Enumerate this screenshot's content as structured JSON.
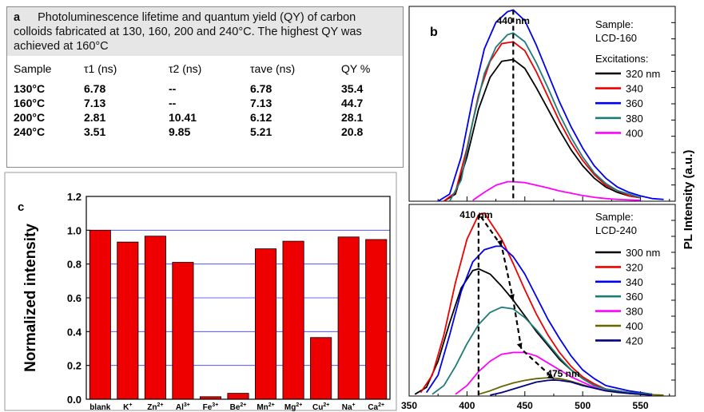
{
  "panel_a": {
    "letter": "a",
    "caption": "Photoluminescence lifetime and quantum yield (QY) of carbon colloids fabricated at 130, 160, 200 and 240°C. The highest QY was achieved at 160°C",
    "headers": [
      "Sample",
      "τ1 (ns)",
      "τ2 (ns)",
      "τave (ns)",
      "QY %"
    ],
    "rows": [
      [
        "130°C",
        "6.78",
        "--",
        "6.78",
        "35.4"
      ],
      [
        "160°C",
        "7.13",
        "--",
        "7.13",
        "44.7"
      ],
      [
        "200°C",
        "2.81",
        "10.41",
        "6.12",
        "28.1"
      ],
      [
        "240°C",
        "3.51",
        "9.85",
        "5.21",
        "20.8"
      ]
    ]
  },
  "chart_data": [
    {
      "panel": "c",
      "type": "bar",
      "ylabel": "Normalized intensity",
      "ylim": [
        0.0,
        1.2
      ],
      "yticks": [
        "0.0",
        "0.2",
        "0.4",
        "0.6",
        "0.8",
        "1.0",
        "1.2"
      ],
      "grid": true,
      "categories": [
        "blank",
        "K+",
        "Zn2+",
        "Al3+",
        "Fe3+",
        "Be2+",
        "Mn2+",
        "Mg2+",
        "Cu2+",
        "Na+",
        "Ca2+"
      ],
      "category_labels": [
        {
          "base": "blank",
          "sup": ""
        },
        {
          "base": "K",
          "sup": "+"
        },
        {
          "base": "Zn",
          "sup": "2+"
        },
        {
          "base": "Al",
          "sup": "3+"
        },
        {
          "base": "Fe",
          "sup": "3+"
        },
        {
          "base": "Be",
          "sup": "2+"
        },
        {
          "base": "Mn",
          "sup": "2+"
        },
        {
          "base": "Mg",
          "sup": "2+"
        },
        {
          "base": "Cu",
          "sup": "2+"
        },
        {
          "base": "Na",
          "sup": "+"
        },
        {
          "base": "Ca",
          "sup": "2+"
        }
      ],
      "values": [
        1.0,
        0.93,
        0.965,
        0.81,
        0.015,
        0.035,
        0.89,
        0.935,
        0.365,
        0.96,
        0.945
      ],
      "bar_color": "#ee0000"
    },
    {
      "panel": "b-top",
      "type": "line",
      "ylabel": "PL Intensity (a.u.)",
      "sample_label": "Sample:",
      "sample_name": "LCD-160",
      "excitations_label": "Excitations:",
      "xlim": [
        350,
        580
      ],
      "ylim": [
        0,
        1.1
      ],
      "peak_annotation": "440 nm",
      "peak_x": 440,
      "series": [
        {
          "name": "320 nm",
          "color": "#000000",
          "points": [
            [
              380,
              0
            ],
            [
              390,
              0.04
            ],
            [
              400,
              0.25
            ],
            [
              410,
              0.52
            ],
            [
              420,
              0.7
            ],
            [
              430,
              0.79
            ],
            [
              440,
              0.8
            ],
            [
              450,
              0.75
            ],
            [
              460,
              0.64
            ],
            [
              470,
              0.52
            ],
            [
              480,
              0.4
            ],
            [
              490,
              0.29
            ],
            [
              500,
              0.2
            ],
            [
              510,
              0.13
            ],
            [
              520,
              0.08
            ],
            [
              530,
              0.05
            ],
            [
              540,
              0.03
            ],
            [
              550,
              0.02
            ]
          ]
        },
        {
          "name": "340",
          "color": "#ee0000",
          "points": [
            [
              380,
              0
            ],
            [
              390,
              0.05
            ],
            [
              400,
              0.3
            ],
            [
              410,
              0.6
            ],
            [
              420,
              0.79
            ],
            [
              430,
              0.89
            ],
            [
              440,
              0.9
            ],
            [
              450,
              0.85
            ],
            [
              460,
              0.73
            ],
            [
              470,
              0.59
            ],
            [
              480,
              0.45
            ],
            [
              490,
              0.33
            ],
            [
              500,
              0.23
            ],
            [
              510,
              0.15
            ],
            [
              520,
              0.09
            ],
            [
              530,
              0.06
            ],
            [
              540,
              0.03
            ],
            [
              550,
              0.02
            ]
          ]
        },
        {
          "name": "360",
          "color": "#0000ee",
          "points": [
            [
              375,
              0
            ],
            [
              385,
              0.04
            ],
            [
              395,
              0.25
            ],
            [
              405,
              0.58
            ],
            [
              415,
              0.86
            ],
            [
              425,
              1.01
            ],
            [
              435,
              1.07
            ],
            [
              440,
              1.08
            ],
            [
              450,
              1.02
            ],
            [
              460,
              0.88
            ],
            [
              470,
              0.72
            ],
            [
              480,
              0.56
            ],
            [
              490,
              0.42
            ],
            [
              500,
              0.3
            ],
            [
              510,
              0.2
            ],
            [
              520,
              0.13
            ],
            [
              530,
              0.08
            ],
            [
              540,
              0.05
            ],
            [
              550,
              0.03
            ],
            [
              560,
              0.015
            ],
            [
              570,
              0.01
            ]
          ]
        },
        {
          "name": "380",
          "color": "#1f7a7a",
          "points": [
            [
              385,
              0
            ],
            [
              395,
              0.12
            ],
            [
              405,
              0.45
            ],
            [
              415,
              0.72
            ],
            [
              425,
              0.87
            ],
            [
              435,
              0.94
            ],
            [
              440,
              0.95
            ],
            [
              450,
              0.9
            ],
            [
              460,
              0.78
            ],
            [
              470,
              0.64
            ],
            [
              480,
              0.49
            ],
            [
              490,
              0.36
            ],
            [
              500,
              0.25
            ],
            [
              510,
              0.16
            ],
            [
              520,
              0.1
            ],
            [
              530,
              0.06
            ],
            [
              540,
              0.04
            ],
            [
              550,
              0.02
            ]
          ]
        },
        {
          "name": "400",
          "color": "#ff00ff",
          "points": [
            [
              405,
              0.005
            ],
            [
              415,
              0.05
            ],
            [
              425,
              0.09
            ],
            [
              435,
              0.11
            ],
            [
              440,
              0.11
            ],
            [
              450,
              0.105
            ],
            [
              460,
              0.09
            ],
            [
              470,
              0.075
            ],
            [
              480,
              0.058
            ],
            [
              490,
              0.045
            ],
            [
              500,
              0.032
            ],
            [
              510,
              0.022
            ],
            [
              520,
              0.015
            ],
            [
              530,
              0.01
            ],
            [
              550,
              0.005
            ]
          ]
        }
      ]
    },
    {
      "panel": "b-bottom",
      "type": "line",
      "sample_label": "Sample:",
      "sample_name": "LCD-240",
      "xlim": [
        350,
        580
      ],
      "xticks": [
        "350",
        "400",
        "450",
        "500",
        "550"
      ],
      "ylim": [
        0,
        1.1
      ],
      "peak_annotations": [
        {
          "text": "410 nm",
          "x": 410
        },
        {
          "text": "475 nm",
          "x": 475
        }
      ],
      "series": [
        {
          "name": "300 nm",
          "color": "#000000",
          "points": [
            [
              355,
              0.01
            ],
            [
              365,
              0.05
            ],
            [
              375,
              0.2
            ],
            [
              385,
              0.42
            ],
            [
              395,
              0.62
            ],
            [
              405,
              0.72
            ],
            [
              410,
              0.73
            ],
            [
              420,
              0.7
            ],
            [
              430,
              0.63
            ],
            [
              440,
              0.55
            ],
            [
              450,
              0.46
            ],
            [
              460,
              0.37
            ],
            [
              470,
              0.29
            ],
            [
              480,
              0.21
            ],
            [
              490,
              0.15
            ],
            [
              500,
              0.1
            ],
            [
              510,
              0.06
            ],
            [
              520,
              0.04
            ],
            [
              540,
              0.02
            ],
            [
              560,
              0.01
            ]
          ]
        },
        {
          "name": "320",
          "color": "#ee0000",
          "points": [
            [
              360,
              0.02
            ],
            [
              370,
              0.12
            ],
            [
              380,
              0.35
            ],
            [
              390,
              0.65
            ],
            [
              400,
              0.9
            ],
            [
              410,
              1.04
            ],
            [
              415,
              1.05
            ],
            [
              420,
              1.0
            ],
            [
              430,
              0.9
            ],
            [
              440,
              0.76
            ],
            [
              450,
              0.61
            ],
            [
              460,
              0.47
            ],
            [
              470,
              0.35
            ],
            [
              480,
              0.25
            ],
            [
              490,
              0.17
            ],
            [
              500,
              0.11
            ],
            [
              510,
              0.07
            ],
            [
              520,
              0.04
            ],
            [
              540,
              0.02
            ],
            [
              560,
              0.01
            ]
          ]
        },
        {
          "name": "340",
          "color": "#0000ee",
          "points": [
            [
              365,
              0.02
            ],
            [
              375,
              0.12
            ],
            [
              385,
              0.35
            ],
            [
              395,
              0.6
            ],
            [
              405,
              0.77
            ],
            [
              415,
              0.84
            ],
            [
              425,
              0.86
            ],
            [
              430,
              0.86
            ],
            [
              440,
              0.8
            ],
            [
              450,
              0.7
            ],
            [
              460,
              0.57
            ],
            [
              470,
              0.44
            ],
            [
              480,
              0.33
            ],
            [
              490,
              0.23
            ],
            [
              500,
              0.15
            ],
            [
              510,
              0.1
            ],
            [
              520,
              0.06
            ],
            [
              540,
              0.03
            ],
            [
              560,
              0.01
            ]
          ]
        },
        {
          "name": "360",
          "color": "#1f7a7a",
          "points": [
            [
              370,
              0.01
            ],
            [
              380,
              0.06
            ],
            [
              390,
              0.17
            ],
            [
              400,
              0.3
            ],
            [
              410,
              0.41
            ],
            [
              420,
              0.48
            ],
            [
              430,
              0.51
            ],
            [
              440,
              0.5
            ],
            [
              450,
              0.45
            ],
            [
              460,
              0.38
            ],
            [
              470,
              0.3
            ],
            [
              480,
              0.22
            ],
            [
              490,
              0.15
            ],
            [
              500,
              0.1
            ],
            [
              510,
              0.06
            ],
            [
              520,
              0.04
            ],
            [
              540,
              0.02
            ],
            [
              560,
              0.01
            ]
          ]
        },
        {
          "name": "380",
          "color": "#ff00ff",
          "points": [
            [
              390,
              0.01
            ],
            [
              400,
              0.06
            ],
            [
              410,
              0.14
            ],
            [
              420,
              0.2
            ],
            [
              430,
              0.24
            ],
            [
              440,
              0.25
            ],
            [
              450,
              0.25
            ],
            [
              460,
              0.23
            ],
            [
              470,
              0.19
            ],
            [
              480,
              0.15
            ],
            [
              490,
              0.11
            ],
            [
              500,
              0.08
            ],
            [
              510,
              0.05
            ],
            [
              520,
              0.03
            ],
            [
              540,
              0.015
            ],
            [
              560,
              0.005
            ]
          ]
        },
        {
          "name": "400",
          "color": "#666600",
          "points": [
            [
              410,
              0.01
            ],
            [
              420,
              0.03
            ],
            [
              430,
              0.055
            ],
            [
              440,
              0.075
            ],
            [
              450,
              0.09
            ],
            [
              460,
              0.1
            ],
            [
              470,
              0.105
            ],
            [
              480,
              0.1
            ],
            [
              490,
              0.085
            ],
            [
              500,
              0.065
            ],
            [
              510,
              0.045
            ],
            [
              520,
              0.03
            ],
            [
              530,
              0.02
            ],
            [
              550,
              0.01
            ],
            [
              570,
              0.005
            ]
          ]
        },
        {
          "name": "420",
          "color": "#000080",
          "points": [
            [
              420,
              0.005
            ],
            [
              430,
              0.02
            ],
            [
              440,
              0.04
            ],
            [
              450,
              0.06
            ],
            [
              460,
              0.08
            ],
            [
              470,
              0.09
            ],
            [
              475,
              0.092
            ],
            [
              480,
              0.09
            ],
            [
              490,
              0.08
            ],
            [
              500,
              0.06
            ],
            [
              510,
              0.045
            ],
            [
              520,
              0.03
            ],
            [
              540,
              0.015
            ],
            [
              560,
              0.005
            ]
          ]
        }
      ]
    }
  ]
}
